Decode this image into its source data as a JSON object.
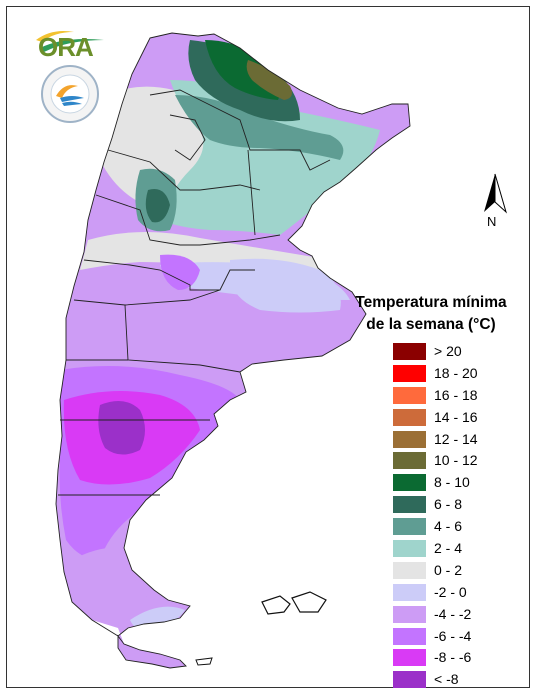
{
  "legend": {
    "title_line1": "Temperatura mínima",
    "title_line2": "de la semana (°C)",
    "items": [
      {
        "label": "> 20",
        "color": "#8b0000"
      },
      {
        "label": "18 - 20",
        "color": "#ff0000"
      },
      {
        "label": "16 - 18",
        "color": "#ff6a3c"
      },
      {
        "label": "14 - 16",
        "color": "#cd6b3a"
      },
      {
        "label": "12 - 14",
        "color": "#9b6f35"
      },
      {
        "label": "10 - 12",
        "color": "#6b6b35"
      },
      {
        "label": "8 - 10",
        "color": "#0b6a32"
      },
      {
        "label": "6 - 8",
        "color": "#2f6a5b"
      },
      {
        "label": "4 - 6",
        "color": "#5f9d93"
      },
      {
        "label": "2 - 4",
        "color": "#9fd4cc"
      },
      {
        "label": "0 - 2",
        "color": "#e4e4e4"
      },
      {
        "label": "-2 - 0",
        "color": "#ccccf8"
      },
      {
        "label": "-4 - -2",
        "color": "#cd9cf5"
      },
      {
        "label": "-6 - -4",
        "color": "#c374ff"
      },
      {
        "label": "-8 - -6",
        "color": "#d93af5"
      },
      {
        "label": "< -8",
        "color": "#9b30c9"
      }
    ]
  },
  "north_arrow": {
    "label": "N"
  },
  "logo": {
    "ora_text": "ORA"
  }
}
